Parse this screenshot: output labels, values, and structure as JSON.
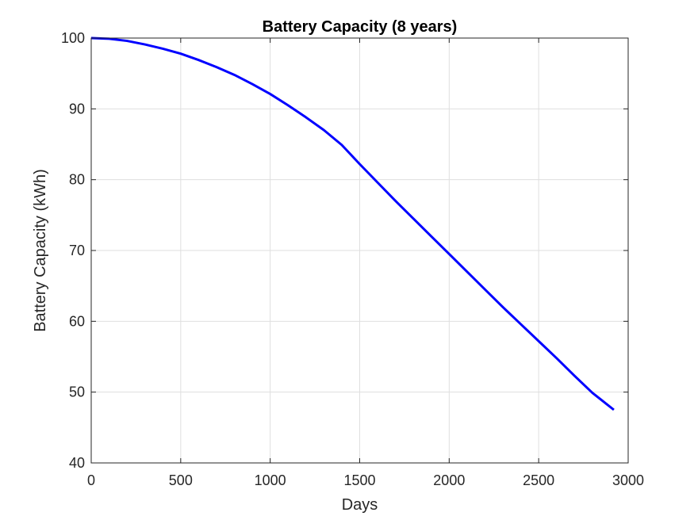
{
  "chart_data": {
    "type": "line",
    "title": "Battery Capacity (8 years)",
    "xlabel": "Days",
    "ylabel": "Battery Capacity (kWh)",
    "xlim": [
      0,
      3000
    ],
    "ylim": [
      40,
      100
    ],
    "xticks": [
      0,
      500,
      1000,
      1500,
      2000,
      2500,
      3000
    ],
    "yticks": [
      40,
      50,
      60,
      70,
      80,
      90,
      100
    ],
    "grid": true,
    "legend": "none",
    "series": [
      {
        "color": "#0000ff",
        "x": [
          0,
          100,
          200,
          300,
          400,
          500,
          600,
          700,
          800,
          900,
          1000,
          1100,
          1200,
          1300,
          1400,
          1500,
          1600,
          1700,
          1800,
          1900,
          2000,
          2100,
          2200,
          2300,
          2400,
          2500,
          2600,
          2700,
          2800,
          2920
        ],
        "y": [
          100,
          99.9,
          99.6,
          99.1,
          98.5,
          97.8,
          96.9,
          95.9,
          94.8,
          93.5,
          92.1,
          90.5,
          88.8,
          87.0,
          84.9,
          82.2,
          79.6,
          77.0,
          74.5,
          72.0,
          69.5,
          67.0,
          64.5,
          62.0,
          59.6,
          57.2,
          54.8,
          52.3,
          49.9,
          47.5
        ]
      }
    ]
  }
}
